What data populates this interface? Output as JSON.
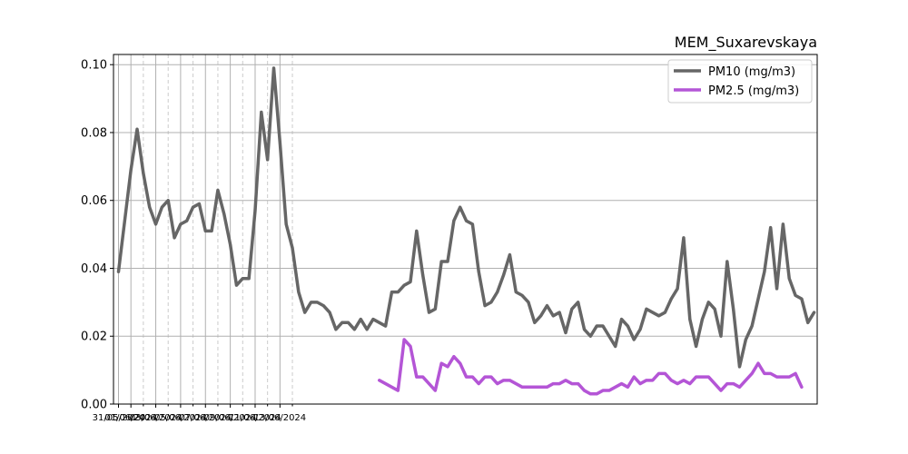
{
  "chart_data": {
    "type": "line",
    "title": "MEM_Suxarevskaya",
    "xlabel": "",
    "ylabel": "",
    "ylim": [
      0,
      0.103
    ],
    "grid": true,
    "legend": "top-right",
    "x_start": "31/05/2024",
    "x_step_hours": 12,
    "x_ticks_major": [
      "31/05/2024",
      "01/06/2024",
      "03/06/2024",
      "05/06/2024",
      "07/06/2024",
      "09/06/2024",
      "11/06/2024",
      "13/06/2024"
    ],
    "y_ticks": [
      "0.00",
      "0.02",
      "0.04",
      "0.06",
      "0.08",
      "0.10"
    ],
    "series": [
      {
        "name": "PM10 (mg/m3)",
        "color": "#666666",
        "values": [
          0.039,
          0.054,
          0.069,
          0.081,
          0.068,
          0.058,
          0.053,
          0.058,
          0.06,
          0.049,
          0.053,
          0.054,
          0.058,
          0.059,
          0.051,
          0.051,
          0.063,
          0.056,
          0.047,
          0.035,
          0.037,
          0.037,
          0.057,
          0.086,
          0.072,
          0.099,
          0.077,
          0.053,
          0.046,
          0.033,
          0.027,
          0.03,
          0.03,
          0.029,
          0.027,
          0.022,
          0.024,
          0.024,
          0.022,
          0.025,
          0.022,
          0.025,
          0.024,
          0.023,
          0.033,
          0.033,
          0.035,
          0.036,
          0.051,
          0.038,
          0.027,
          0.028,
          0.042,
          0.042,
          0.054,
          0.058,
          0.054,
          0.053,
          0.039,
          0.029,
          0.03,
          0.033,
          0.038,
          0.044,
          0.033,
          0.032,
          0.03,
          0.024,
          0.026,
          0.029,
          0.026,
          0.027,
          0.021,
          0.028,
          0.03,
          0.022,
          0.02,
          0.023,
          0.023,
          0.02,
          0.017,
          0.025,
          0.023,
          0.019,
          0.022,
          0.028,
          0.027,
          0.026,
          0.027,
          0.031,
          0.034,
          0.049,
          0.025,
          0.017,
          0.025,
          0.03,
          0.028,
          0.02,
          0.042,
          0.028,
          0.011,
          0.019,
          0.023,
          0.031,
          0.039,
          0.052,
          0.034,
          0.053,
          0.037,
          0.032,
          0.031,
          0.024,
          0.027
        ]
      },
      {
        "name": "PM2.5 (mg/m3)",
        "color": "#b455d6",
        "offset": 42,
        "values": [
          0.007,
          0.006,
          0.005,
          0.004,
          0.019,
          0.017,
          0.008,
          0.008,
          0.006,
          0.004,
          0.012,
          0.011,
          0.014,
          0.012,
          0.008,
          0.008,
          0.006,
          0.008,
          0.008,
          0.006,
          0.007,
          0.007,
          0.006,
          0.005,
          0.005,
          0.005,
          0.005,
          0.005,
          0.006,
          0.006,
          0.007,
          0.006,
          0.006,
          0.004,
          0.003,
          0.003,
          0.004,
          0.004,
          0.005,
          0.006,
          0.005,
          0.008,
          0.006,
          0.007,
          0.007,
          0.009,
          0.009,
          0.007,
          0.006,
          0.007,
          0.006,
          0.008,
          0.008,
          0.008,
          0.006,
          0.004,
          0.006,
          0.006,
          0.005,
          0.007,
          0.009,
          0.012,
          0.009,
          0.009,
          0.008,
          0.008,
          0.008,
          0.009,
          0.005
        ]
      }
    ]
  }
}
